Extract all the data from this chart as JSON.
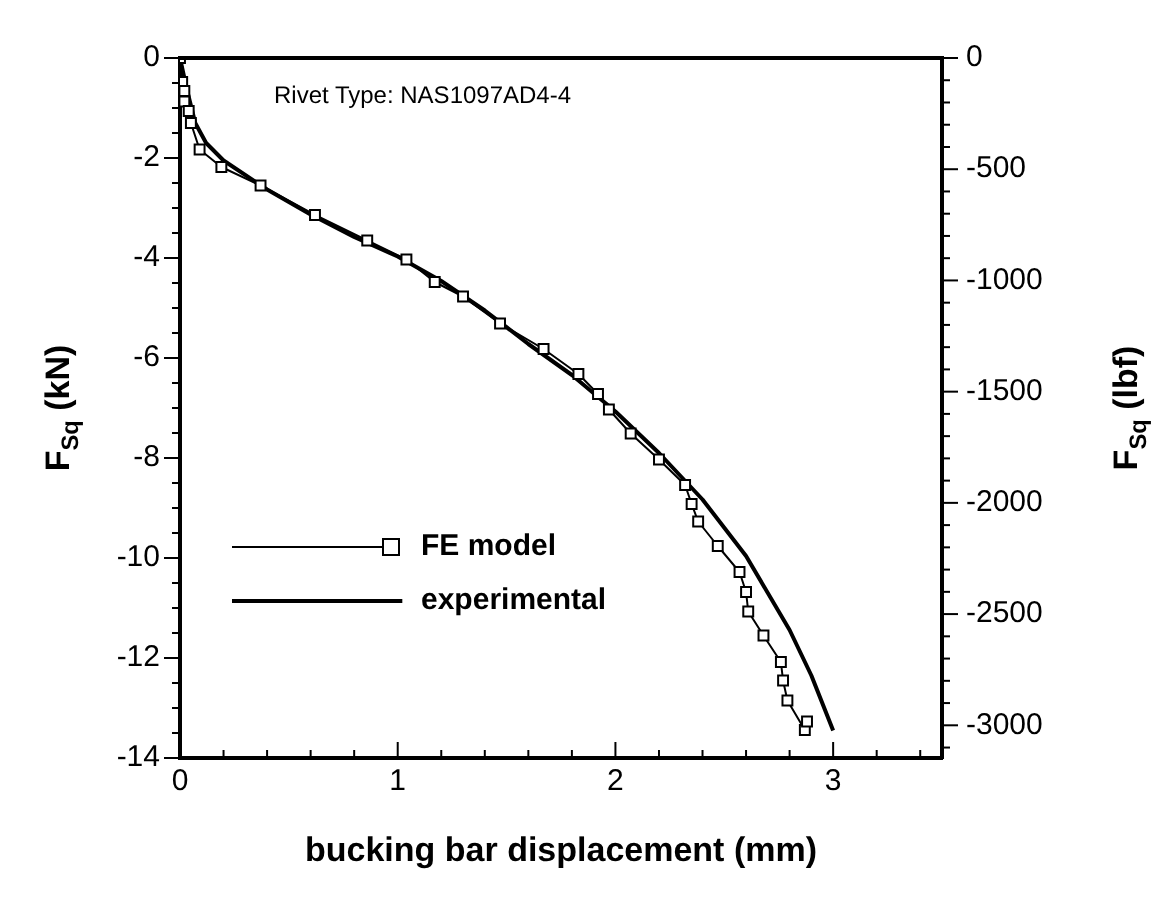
{
  "chart_data": {
    "type": "line",
    "xlabel": "bucking bar displacement (mm)",
    "ylabel": "F$_{Sq}$ (kN)",
    "y2label": "F$_{Sq}$ (lbf)",
    "annotations": [
      "Rivet Type: NAS1097AD4-4"
    ],
    "legend": "bottom left",
    "grid": false,
    "line_style": "solid",
    "xlim": [
      0,
      3.5
    ],
    "xticks": [
      0,
      {
        "value": 0.2,
        "label": null
      },
      {
        "value": 0.4,
        "label": null
      },
      {
        "value": 0.6,
        "label": null
      },
      {
        "value": 0.8,
        "label": null
      },
      1,
      {
        "value": 1.2,
        "label": null
      },
      {
        "value": 1.4,
        "label": null
      },
      {
        "value": 1.6,
        "label": null
      },
      {
        "value": 1.8,
        "label": null
      },
      2,
      {
        "value": 2.2,
        "label": null
      },
      {
        "value": 2.4,
        "label": null
      },
      {
        "value": 2.6,
        "label": null
      },
      {
        "value": 2.8,
        "label": null
      },
      3,
      {
        "value": 3.2,
        "label": null
      },
      {
        "value": 3.4,
        "label": null
      }
    ],
    "ylim": [
      -14,
      0
    ],
    "yticks": [
      0,
      {
        "value": -0.5,
        "label": null
      },
      {
        "value": -1,
        "label": null
      },
      {
        "value": -1.5,
        "label": null
      },
      -2,
      {
        "value": -2.5,
        "label": null
      },
      {
        "value": -3,
        "label": null
      },
      {
        "value": -3.5,
        "label": null
      },
      -4,
      {
        "value": -4.5,
        "label": null
      },
      {
        "value": -5,
        "label": null
      },
      {
        "value": -5.5,
        "label": null
      },
      -6,
      {
        "value": -6.5,
        "label": null
      },
      {
        "value": -7,
        "label": null
      },
      {
        "value": -7.5,
        "label": null
      },
      -8,
      {
        "value": -8.5,
        "label": null
      },
      {
        "value": -9,
        "label": null
      },
      {
        "value": -9.5,
        "label": null
      },
      -10,
      {
        "value": -10.5,
        "label": null
      },
      {
        "value": -11,
        "label": null
      },
      {
        "value": -11.5,
        "label": null
      },
      -12,
      {
        "value": -12.5,
        "label": null
      },
      {
        "value": -13,
        "label": null
      },
      {
        "value": -13.5,
        "label": null
      },
      -14
    ],
    "y2lim": [
      -3147,
      0
    ],
    "y2ticks": [
      0,
      {
        "value": -100,
        "label": null
      },
      {
        "value": -200,
        "label": null
      },
      {
        "value": -300,
        "label": null
      },
      {
        "value": -400,
        "label": null
      },
      -500,
      {
        "value": -600,
        "label": null
      },
      {
        "value": -700,
        "label": null
      },
      {
        "value": -800,
        "label": null
      },
      {
        "value": -900,
        "label": null
      },
      -1000,
      {
        "value": -1100,
        "label": null
      },
      {
        "value": -1200,
        "label": null
      },
      {
        "value": -1300,
        "label": null
      },
      {
        "value": -1400,
        "label": null
      },
      -1500,
      {
        "value": -1600,
        "label": null
      },
      {
        "value": -1700,
        "label": null
      },
      {
        "value": -1800,
        "label": null
      },
      {
        "value": -1900,
        "label": null
      },
      -2000,
      {
        "value": -2100,
        "label": null
      },
      {
        "value": -2200,
        "label": null
      },
      {
        "value": -2300,
        "label": null
      },
      {
        "value": -2400,
        "label": null
      },
      -2500,
      {
        "value": -2600,
        "label": null
      },
      {
        "value": -2700,
        "label": null
      },
      {
        "value": -2800,
        "label": null
      },
      {
        "value": -2900,
        "label": null
      },
      -3000,
      {
        "value": -3100,
        "label": null
      }
    ],
    "series": [
      {
        "name": "FE model",
        "color": "#000000",
        "marker": "square",
        "x": [
          0,
          0.01,
          0.02,
          0.02,
          0.04,
          0.05,
          0.09,
          0.19,
          0.37,
          0.62,
          0.86,
          1.04,
          1.17,
          1.3,
          1.47,
          1.67,
          1.83,
          1.92,
          1.97,
          2.07,
          2.2,
          2.32,
          2.35,
          2.38,
          2.47,
          2.57,
          2.6,
          2.61,
          2.68,
          2.76,
          2.77,
          2.79,
          2.87,
          2.88
        ],
        "values": [
          0,
          -0.48,
          -0.66,
          -0.87,
          -1.06,
          -1.3,
          -1.83,
          -2.18,
          -2.55,
          -3.14,
          -3.65,
          -4.03,
          -4.48,
          -4.77,
          -5.31,
          -5.82,
          -6.32,
          -6.72,
          -7.03,
          -7.51,
          -8.03,
          -8.54,
          -8.92,
          -9.27,
          -9.76,
          -10.28,
          -10.68,
          -11.07,
          -11.55,
          -12.08,
          -12.45,
          -12.85,
          -13.44,
          -13.27
        ]
      },
      {
        "name": "experimental",
        "color": "#000000",
        "marker": "none",
        "x": [
          0,
          0.03,
          0.07,
          0.12,
          0.2,
          0.4,
          0.6,
          0.8,
          1.0,
          1.2,
          1.4,
          1.6,
          1.8,
          2.0,
          2.2,
          2.4,
          2.6,
          2.8,
          2.9,
          3.0
        ],
        "values": [
          0,
          -0.6,
          -1.3,
          -1.7,
          -2.05,
          -2.63,
          -3.13,
          -3.58,
          -3.97,
          -4.46,
          -5.05,
          -5.72,
          -6.34,
          -7.07,
          -7.9,
          -8.83,
          -9.96,
          -11.44,
          -12.35,
          -13.45
        ]
      }
    ]
  }
}
